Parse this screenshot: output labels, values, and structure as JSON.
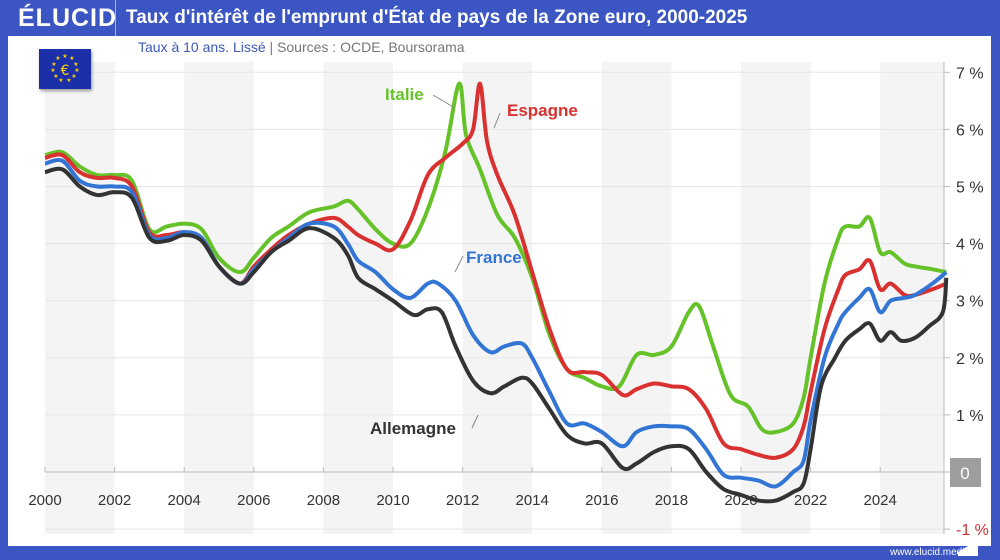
{
  "header": {
    "logo": "ÉLUCID",
    "title": "Taux d'intérêt de l'emprunt d'État de pays de la Zone euro, 2000-2025"
  },
  "subtitle": {
    "main": "Taux à 10 ans. Lissé",
    "sep": "|",
    "sources": "Sources : OCDE, Boursorama"
  },
  "footer": {
    "url": "www.elucid.media"
  },
  "icons": {
    "flag": "eu-flag-euro-icon"
  },
  "chart_data": {
    "type": "line",
    "title": "Taux d'intérêt de l'emprunt d'État de pays de la Zone euro, 2000-2025",
    "xlim": [
      2000,
      2026
    ],
    "ylim": [
      -1,
      7
    ],
    "x_ticks": [
      "2000",
      "2002",
      "2004",
      "2006",
      "2008",
      "2010",
      "2012",
      "2014",
      "2016",
      "2018",
      "2020",
      "2022",
      "2024"
    ],
    "y_ticks": [
      "7 %",
      "6 %",
      "5 %",
      "4 %",
      "3 %",
      "2 %",
      "1 %",
      "0",
      "-1 %"
    ],
    "y_axis_side": "right",
    "grid": true,
    "zero_label_color": "#9e9e9e",
    "neg_label_color": "#d32f2f",
    "series": [
      {
        "name": "Italie",
        "color": "#66c229",
        "points": [
          [
            2000,
            5.55
          ],
          [
            2000.5,
            5.6
          ],
          [
            2001,
            5.35
          ],
          [
            2001.5,
            5.2
          ],
          [
            2002,
            5.2
          ],
          [
            2002.5,
            5.1
          ],
          [
            2003,
            4.25
          ],
          [
            2003.5,
            4.3
          ],
          [
            2004,
            4.35
          ],
          [
            2004.5,
            4.25
          ],
          [
            2005,
            3.75
          ],
          [
            2005.6,
            3.5
          ],
          [
            2006,
            3.75
          ],
          [
            2006.5,
            4.1
          ],
          [
            2007,
            4.3
          ],
          [
            2007.6,
            4.55
          ],
          [
            2008.3,
            4.65
          ],
          [
            2008.7,
            4.75
          ],
          [
            2009,
            4.6
          ],
          [
            2009.5,
            4.25
          ],
          [
            2010,
            4.0
          ],
          [
            2010.5,
            4.0
          ],
          [
            2011,
            4.6
          ],
          [
            2011.5,
            5.6
          ],
          [
            2011.9,
            6.8
          ],
          [
            2012.1,
            5.9
          ],
          [
            2012.5,
            5.3
          ],
          [
            2013,
            4.5
          ],
          [
            2013.5,
            4.1
          ],
          [
            2014,
            3.4
          ],
          [
            2014.5,
            2.4
          ],
          [
            2015,
            1.8
          ],
          [
            2015.5,
            1.65
          ],
          [
            2016,
            1.5
          ],
          [
            2016.5,
            1.5
          ],
          [
            2017,
            2.05
          ],
          [
            2017.5,
            2.05
          ],
          [
            2018,
            2.2
          ],
          [
            2018.5,
            2.8
          ],
          [
            2018.8,
            2.9
          ],
          [
            2019.2,
            2.2
          ],
          [
            2019.7,
            1.35
          ],
          [
            2020.2,
            1.15
          ],
          [
            2020.6,
            0.75
          ],
          [
            2021,
            0.7
          ],
          [
            2021.5,
            0.85
          ],
          [
            2021.8,
            1.3
          ],
          [
            2022,
            2.0
          ],
          [
            2022.4,
            3.3
          ],
          [
            2022.8,
            4.1
          ],
          [
            2023,
            4.3
          ],
          [
            2023.4,
            4.3
          ],
          [
            2023.7,
            4.45
          ],
          [
            2024,
            3.85
          ],
          [
            2024.3,
            3.85
          ],
          [
            2024.7,
            3.65
          ],
          [
            2025,
            3.6
          ],
          [
            2025.5,
            3.55
          ],
          [
            2025.9,
            3.5
          ]
        ]
      },
      {
        "name": "Espagne",
        "color": "#d93030",
        "points": [
          [
            2000,
            5.5
          ],
          [
            2000.5,
            5.55
          ],
          [
            2001,
            5.25
          ],
          [
            2001.5,
            5.15
          ],
          [
            2002,
            5.15
          ],
          [
            2002.5,
            5.0
          ],
          [
            2003,
            4.2
          ],
          [
            2003.5,
            4.15
          ],
          [
            2004,
            4.2
          ],
          [
            2004.5,
            4.1
          ],
          [
            2005,
            3.6
          ],
          [
            2005.6,
            3.3
          ],
          [
            2006,
            3.6
          ],
          [
            2006.5,
            3.9
          ],
          [
            2007,
            4.15
          ],
          [
            2007.6,
            4.35
          ],
          [
            2008.3,
            4.45
          ],
          [
            2008.7,
            4.3
          ],
          [
            2009,
            4.15
          ],
          [
            2009.5,
            4.0
          ],
          [
            2010,
            3.9
          ],
          [
            2010.5,
            4.4
          ],
          [
            2011,
            5.2
          ],
          [
            2011.5,
            5.5
          ],
          [
            2012,
            5.75
          ],
          [
            2012.3,
            6.0
          ],
          [
            2012.5,
            6.8
          ],
          [
            2012.7,
            5.8
          ],
          [
            2013,
            5.2
          ],
          [
            2013.5,
            4.5
          ],
          [
            2014,
            3.5
          ],
          [
            2014.5,
            2.5
          ],
          [
            2015,
            1.8
          ],
          [
            2015.5,
            1.75
          ],
          [
            2016,
            1.7
          ],
          [
            2016.6,
            1.35
          ],
          [
            2017,
            1.45
          ],
          [
            2017.5,
            1.55
          ],
          [
            2018,
            1.5
          ],
          [
            2018.5,
            1.45
          ],
          [
            2019,
            1.1
          ],
          [
            2019.5,
            0.5
          ],
          [
            2020,
            0.4
          ],
          [
            2020.5,
            0.3
          ],
          [
            2021,
            0.25
          ],
          [
            2021.5,
            0.4
          ],
          [
            2021.8,
            0.8
          ],
          [
            2022,
            1.4
          ],
          [
            2022.4,
            2.5
          ],
          [
            2022.8,
            3.2
          ],
          [
            2023,
            3.45
          ],
          [
            2023.4,
            3.55
          ],
          [
            2023.7,
            3.7
          ],
          [
            2024,
            3.2
          ],
          [
            2024.3,
            3.3
          ],
          [
            2024.7,
            3.1
          ],
          [
            2025,
            3.1
          ],
          [
            2025.5,
            3.2
          ],
          [
            2025.9,
            3.3
          ]
        ]
      },
      {
        "name": "France",
        "color": "#3275d4",
        "points": [
          [
            2000,
            5.4
          ],
          [
            2000.5,
            5.45
          ],
          [
            2001,
            5.1
          ],
          [
            2001.5,
            5.0
          ],
          [
            2002,
            5.0
          ],
          [
            2002.5,
            4.9
          ],
          [
            2003,
            4.15
          ],
          [
            2003.5,
            4.1
          ],
          [
            2004,
            4.2
          ],
          [
            2004.5,
            4.1
          ],
          [
            2005,
            3.6
          ],
          [
            2005.6,
            3.3
          ],
          [
            2006,
            3.55
          ],
          [
            2006.5,
            3.85
          ],
          [
            2007,
            4.1
          ],
          [
            2007.6,
            4.35
          ],
          [
            2008.3,
            4.3
          ],
          [
            2008.7,
            4.0
          ],
          [
            2009,
            3.7
          ],
          [
            2009.5,
            3.5
          ],
          [
            2010,
            3.2
          ],
          [
            2010.5,
            3.05
          ],
          [
            2011,
            3.3
          ],
          [
            2011.3,
            3.3
          ],
          [
            2011.8,
            3.0
          ],
          [
            2012.3,
            2.4
          ],
          [
            2012.8,
            2.1
          ],
          [
            2013.2,
            2.2
          ],
          [
            2013.7,
            2.25
          ],
          [
            2014,
            2.0
          ],
          [
            2014.5,
            1.4
          ],
          [
            2015,
            0.85
          ],
          [
            2015.5,
            0.85
          ],
          [
            2016,
            0.7
          ],
          [
            2016.6,
            0.45
          ],
          [
            2017,
            0.7
          ],
          [
            2017.5,
            0.8
          ],
          [
            2018,
            0.8
          ],
          [
            2018.5,
            0.75
          ],
          [
            2019,
            0.4
          ],
          [
            2019.5,
            -0.05
          ],
          [
            2020,
            -0.1
          ],
          [
            2020.5,
            -0.15
          ],
          [
            2021,
            -0.25
          ],
          [
            2021.5,
            0.0
          ],
          [
            2021.8,
            0.2
          ],
          [
            2022,
            0.9
          ],
          [
            2022.4,
            2.0
          ],
          [
            2022.8,
            2.6
          ],
          [
            2023,
            2.8
          ],
          [
            2023.4,
            3.05
          ],
          [
            2023.7,
            3.2
          ],
          [
            2024,
            2.8
          ],
          [
            2024.3,
            3.0
          ],
          [
            2024.7,
            3.05
          ],
          [
            2025,
            3.1
          ],
          [
            2025.5,
            3.3
          ],
          [
            2025.9,
            3.5
          ]
        ]
      },
      {
        "name": "Allemagne",
        "color": "#333333",
        "points": [
          [
            2000,
            5.25
          ],
          [
            2000.5,
            5.3
          ],
          [
            2001,
            5.0
          ],
          [
            2001.5,
            4.85
          ],
          [
            2002,
            4.9
          ],
          [
            2002.5,
            4.8
          ],
          [
            2003,
            4.1
          ],
          [
            2003.5,
            4.05
          ],
          [
            2004,
            4.15
          ],
          [
            2004.5,
            4.05
          ],
          [
            2005,
            3.6
          ],
          [
            2005.6,
            3.3
          ],
          [
            2006,
            3.5
          ],
          [
            2006.5,
            3.85
          ],
          [
            2007,
            4.05
          ],
          [
            2007.6,
            4.27
          ],
          [
            2008.3,
            4.1
          ],
          [
            2008.7,
            3.8
          ],
          [
            2009,
            3.4
          ],
          [
            2009.5,
            3.2
          ],
          [
            2010,
            3.0
          ],
          [
            2010.6,
            2.75
          ],
          [
            2011,
            2.85
          ],
          [
            2011.4,
            2.8
          ],
          [
            2011.8,
            2.2
          ],
          [
            2012.3,
            1.6
          ],
          [
            2012.8,
            1.38
          ],
          [
            2013.2,
            1.5
          ],
          [
            2013.7,
            1.65
          ],
          [
            2014,
            1.55
          ],
          [
            2014.5,
            1.1
          ],
          [
            2015,
            0.65
          ],
          [
            2015.5,
            0.5
          ],
          [
            2016,
            0.5
          ],
          [
            2016.6,
            0.07
          ],
          [
            2017,
            0.15
          ],
          [
            2017.5,
            0.35
          ],
          [
            2018,
            0.45
          ],
          [
            2018.5,
            0.4
          ],
          [
            2019,
            0.0
          ],
          [
            2019.5,
            -0.3
          ],
          [
            2020,
            -0.4
          ],
          [
            2020.5,
            -0.5
          ],
          [
            2021,
            -0.5
          ],
          [
            2021.5,
            -0.35
          ],
          [
            2021.8,
            -0.2
          ],
          [
            2022,
            0.4
          ],
          [
            2022.3,
            1.5
          ],
          [
            2022.7,
            2.0
          ],
          [
            2023,
            2.3
          ],
          [
            2023.4,
            2.5
          ],
          [
            2023.7,
            2.6
          ],
          [
            2024,
            2.3
          ],
          [
            2024.3,
            2.45
          ],
          [
            2024.6,
            2.3
          ],
          [
            2025,
            2.35
          ],
          [
            2025.4,
            2.55
          ],
          [
            2025.8,
            2.8
          ],
          [
            2025.9,
            3.4
          ]
        ]
      }
    ]
  }
}
